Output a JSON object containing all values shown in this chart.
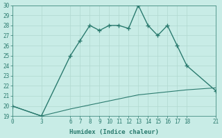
{
  "title": "",
  "xlabel": "Humidex (Indice chaleur)",
  "line1_x": [
    0,
    3,
    6,
    7,
    8,
    9,
    10,
    11,
    12,
    13,
    14,
    15,
    16,
    17,
    18,
    21
  ],
  "line1_y": [
    20,
    19,
    25,
    26.5,
    28,
    27.5,
    28,
    28,
    27.7,
    30,
    28,
    27,
    28,
    26,
    24,
    21.5
  ],
  "line2_x": [
    0,
    3,
    6,
    7,
    8,
    9,
    10,
    11,
    12,
    13,
    14,
    15,
    16,
    17,
    18,
    21
  ],
  "line2_y": [
    20,
    19,
    19.7,
    19.9,
    20.1,
    20.3,
    20.5,
    20.7,
    20.9,
    21.1,
    21.2,
    21.3,
    21.4,
    21.5,
    21.6,
    21.8
  ],
  "line_color": "#2a7a6e",
  "bg_color": "#c8ece6",
  "grid_color": "#b0d8d0",
  "ylim": [
    19,
    30
  ],
  "xlim": [
    0,
    21
  ],
  "yticks": [
    19,
    20,
    21,
    22,
    23,
    24,
    25,
    26,
    27,
    28,
    29,
    30
  ],
  "xticks": [
    0,
    3,
    6,
    7,
    8,
    9,
    10,
    11,
    12,
    13,
    14,
    15,
    16,
    17,
    18,
    21
  ],
  "tick_fontsize": 5.5,
  "xlabel_fontsize": 6.5
}
